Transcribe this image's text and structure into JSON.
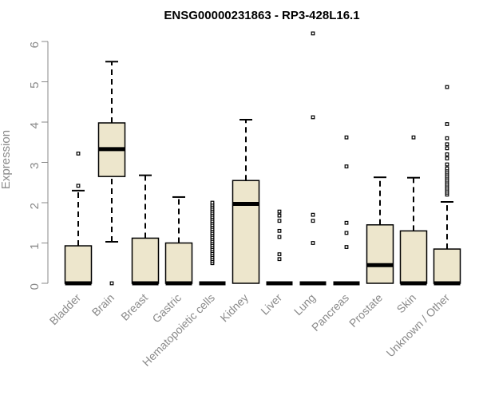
{
  "chart_data": {
    "type": "boxplot",
    "title": "ENSG00000231863 - RP3-428L16.1",
    "ylabel": "Expression",
    "xlabel": "",
    "ylim": [
      0,
      6.2
    ],
    "yticks": [
      "0",
      "1",
      "2",
      "3",
      "4",
      "5",
      "6"
    ],
    "box_fill": "#ede6cc",
    "categories": [
      "Bladder",
      "Brain",
      "Breast",
      "Gastric",
      "Hematopoietic cells",
      "Kidney",
      "Liver",
      "Lung",
      "Pancreas",
      "Prostate",
      "Skin",
      "Unknown / Other"
    ],
    "series": [
      {
        "q1": 0,
        "median": 0,
        "q3": 0.93,
        "whisker_low": 0,
        "whisker_high": 2.3,
        "outliers": [
          2.42,
          3.22
        ]
      },
      {
        "q1": 2.65,
        "median": 3.33,
        "q3": 3.98,
        "whisker_low": 1.03,
        "whisker_high": 5.5,
        "outliers": [
          0
        ]
      },
      {
        "q1": 0,
        "median": 0,
        "q3": 1.12,
        "whisker_low": 0,
        "whisker_high": 2.68,
        "outliers": []
      },
      {
        "q1": 0,
        "median": 0,
        "q3": 1.0,
        "whisker_low": 0,
        "whisker_high": 2.14,
        "outliers": []
      },
      {
        "q1": 0,
        "median": 0,
        "q3": 0,
        "whisker_low": 0,
        "whisker_high": 0,
        "outliers": [
          0.5,
          0.55,
          0.6,
          0.65,
          0.7,
          0.75,
          0.8,
          0.85,
          0.9,
          0.95,
          1.0,
          1.05,
          1.1,
          1.15,
          1.2,
          1.25,
          1.3,
          1.35,
          1.4,
          1.45,
          1.5,
          1.55,
          1.6,
          1.65,
          1.7,
          1.75,
          1.8,
          1.85,
          1.9,
          1.95,
          2.0
        ]
      },
      {
        "q1": 0,
        "median": 1.97,
        "q3": 2.55,
        "whisker_low": 0,
        "whisker_high": 4.06,
        "outliers": []
      },
      {
        "q1": 0,
        "median": 0,
        "q3": 0,
        "whisker_low": 0,
        "whisker_high": 0,
        "outliers": [
          0.6,
          0.72,
          1.15,
          1.3,
          1.55,
          1.68,
          1.78
        ]
      },
      {
        "q1": 0,
        "median": 0,
        "q3": 0,
        "whisker_low": 0,
        "whisker_high": 0,
        "outliers": [
          1.0,
          1.55,
          1.7,
          4.12,
          6.2
        ]
      },
      {
        "q1": 0,
        "median": 0,
        "q3": 0,
        "whisker_low": 0,
        "whisker_high": 0,
        "outliers": [
          0.9,
          1.25,
          1.5,
          2.9,
          3.62
        ]
      },
      {
        "q1": 0,
        "median": 0.45,
        "q3": 1.45,
        "whisker_low": 0,
        "whisker_high": 2.63,
        "outliers": []
      },
      {
        "q1": 0,
        "median": 0,
        "q3": 1.3,
        "whisker_low": 0,
        "whisker_high": 2.62,
        "outliers": [
          3.62
        ]
      },
      {
        "q1": 0,
        "median": 0,
        "q3": 0.85,
        "whisker_low": 0,
        "whisker_high": 2.02,
        "outliers": [
          2.2,
          2.25,
          2.3,
          2.35,
          2.4,
          2.45,
          2.5,
          2.55,
          2.6,
          2.65,
          2.7,
          2.75,
          2.8,
          2.85,
          2.95,
          3.1,
          3.2,
          3.35,
          3.45,
          3.6,
          3.95,
          4.87
        ]
      }
    ]
  }
}
